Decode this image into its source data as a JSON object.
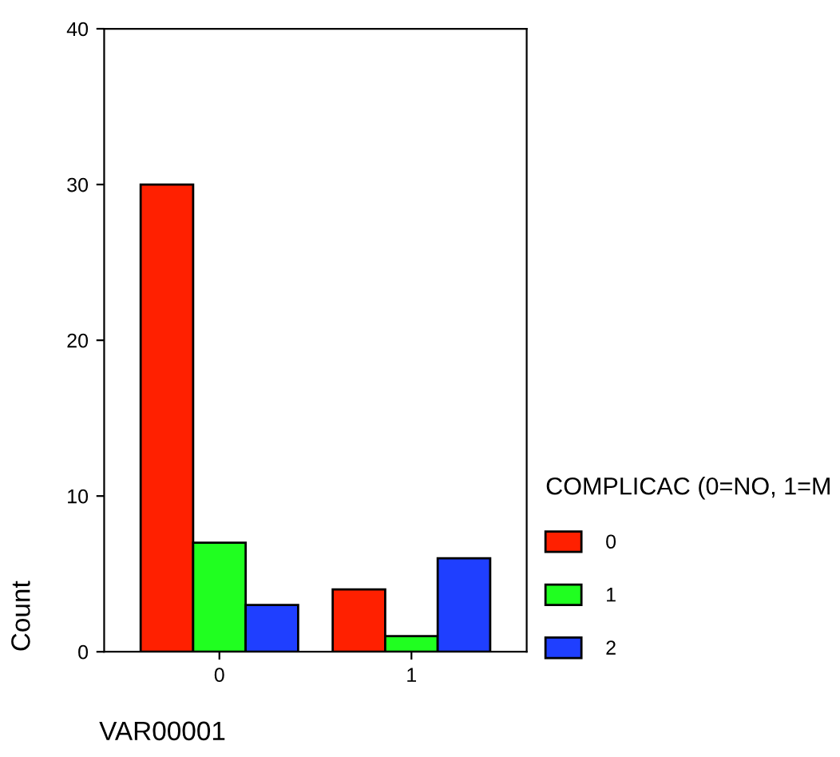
{
  "chart_data": {
    "type": "bar",
    "categories": [
      "0",
      "1"
    ],
    "xlabel": "VAR00001",
    "ylabel": "Count",
    "legend_title": "COMPLICAC (0=NO, 1=M",
    "series": [
      {
        "name": "0",
        "color": "#ff2000",
        "values": [
          30,
          4
        ]
      },
      {
        "name": "1",
        "color": "#20ff20",
        "values": [
          7,
          1
        ]
      },
      {
        "name": "2",
        "color": "#1f3fff",
        "values": [
          3,
          6
        ]
      }
    ],
    "ylim": [
      0,
      40
    ],
    "yticks": [
      0,
      10,
      20,
      30,
      40
    ],
    "grid": false,
    "legend": "right"
  }
}
